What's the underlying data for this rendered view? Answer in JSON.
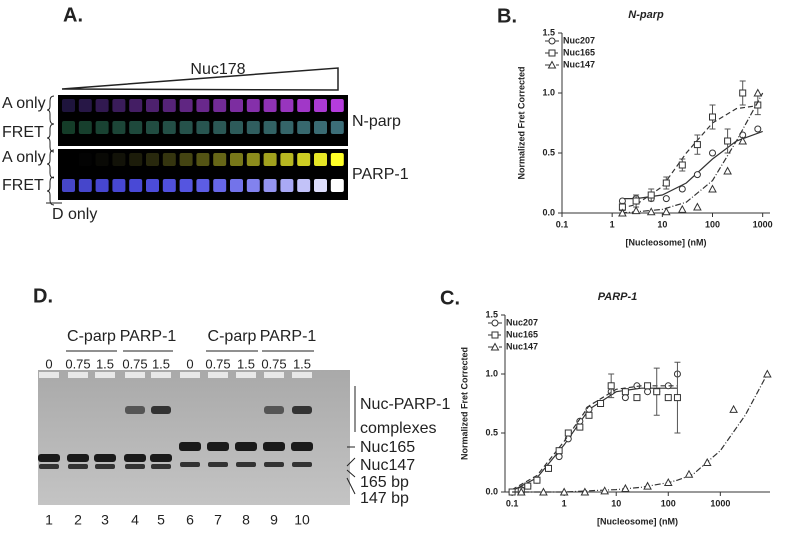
{
  "panel_a": {
    "label": "A.",
    "titrant": "Nuc178",
    "gels": [
      {
        "name": "N-parp",
        "rows": [
          "A only",
          "FRET"
        ]
      },
      {
        "name": "PARP-1",
        "rows": [
          "A only",
          "FRET"
        ]
      }
    ],
    "footnote": "D only"
  },
  "panel_d": {
    "label": "D.",
    "groups": [
      "C-parp",
      "PARP-1",
      "C-parp",
      "PARP-1"
    ],
    "amounts": [
      0,
      0.75,
      1.5,
      0.75,
      1.5,
      0,
      0.75,
      1.5,
      0.75,
      1.5
    ],
    "lanes": [
      1,
      2,
      3,
      4,
      5,
      6,
      7,
      8,
      9,
      10
    ],
    "band_labels": [
      [
        "Nuc-PARP-1",
        "complexes"
      ],
      [
        "Nuc165"
      ],
      [
        "Nuc147"
      ],
      [
        "165 bp"
      ],
      [
        "147 bp"
      ]
    ]
  },
  "chart_data": [
    {
      "type": "scatter",
      "panel_label": "B.",
      "title": "N-parp",
      "xlabel": "[Nucleosome] (nM)",
      "ylabel": "Normalized Fret Corrected",
      "xscale": "log",
      "xlim": [
        0.1,
        1400
      ],
      "xticks": [
        0.1,
        1,
        10,
        100,
        1000
      ],
      "ylim": [
        0,
        1.5
      ],
      "yticks": [
        {
          "value": 0,
          "label": "0.0"
        },
        0.5,
        {
          "value": 1,
          "label": "1.0"
        },
        1.5
      ],
      "legend": "upper left",
      "fit_x": [
        1.5,
        3,
        10,
        30,
        100,
        300,
        1000
      ],
      "series": [
        {
          "name": "Nuc207",
          "marker": "circle",
          "color": "#333333",
          "dash": "solid",
          "x": [
            1.6,
            3,
            6,
            12,
            25,
            50,
            100,
            200,
            400,
            800
          ],
          "values": [
            0.1,
            0.12,
            0.12,
            0.12,
            0.2,
            0.32,
            0.5,
            0.6,
            0.65,
            0.7
          ],
          "fit": [
            0.12,
            0.12,
            0.15,
            0.25,
            0.45,
            0.6,
            0.68
          ]
        },
        {
          "name": "Nuc165",
          "marker": "square",
          "color": "#333333",
          "dash": "dashed",
          "x": [
            1.6,
            3,
            6,
            12,
            25,
            50,
            100,
            200,
            400,
            800
          ],
          "values": [
            0.05,
            0.1,
            0.15,
            0.25,
            0.4,
            0.57,
            0.8,
            0.6,
            1.0,
            0.9
          ],
          "errors": [
            0.03,
            0.05,
            0.05,
            0.05,
            0.05,
            0.08,
            0.1,
            0.1,
            0.1,
            0.08
          ],
          "fit": [
            0.04,
            0.07,
            0.22,
            0.5,
            0.75,
            0.87,
            0.9
          ]
        },
        {
          "name": "Nuc147",
          "marker": "triangle",
          "color": "#333333",
          "dash": "dashdot",
          "x": [
            1.6,
            3,
            6,
            12,
            25,
            50,
            100,
            200,
            400,
            800
          ],
          "values": [
            0,
            0.02,
            0.01,
            0.01,
            0.03,
            0.05,
            0.2,
            0.35,
            0.6,
            1.0
          ],
          "fit": [
            0,
            0.01,
            0.03,
            0.09,
            0.27,
            0.6,
            1.0
          ]
        }
      ]
    },
    {
      "type": "scatter",
      "panel_label": "C.",
      "title": "PARP-1",
      "xlabel": "[Nucleosome] (nM)",
      "ylabel": "Normalized Fret Corrected",
      "xscale": "log",
      "xlim": [
        0.073,
        9000
      ],
      "xticks": [
        0.1,
        1,
        10,
        100,
        1000
      ],
      "ylim": [
        0,
        1.5
      ],
      "yticks": [
        {
          "value": 0,
          "label": "0.0"
        },
        0.5,
        {
          "value": 1,
          "label": "1.0"
        },
        1.5
      ],
      "legend": "upper left",
      "fit_x": [
        0.1,
        0.3,
        1,
        3,
        10,
        30,
        100,
        150,
        300,
        1000,
        3000,
        8000
      ],
      "series": [
        {
          "name": "Nuc207",
          "marker": "circle",
          "color": "#333333",
          "dash": "solid",
          "x": [
            0.1,
            0.15,
            0.2,
            0.3,
            0.5,
            0.8,
            1.2,
            2,
            3,
            5,
            8,
            15,
            25,
            40,
            60,
            100,
            150
          ],
          "values": [
            0,
            0.02,
            0.05,
            0.1,
            0.2,
            0.3,
            0.45,
            0.6,
            0.7,
            0.75,
            0.85,
            0.8,
            0.9,
            0.85,
            0.85,
            0.9,
            1.0
          ],
          "fit": [
            0.01,
            0.12,
            0.4,
            0.7,
            0.85,
            0.88,
            0.88,
            0.88,
            null,
            null,
            null,
            null
          ]
        },
        {
          "name": "Nuc165",
          "marker": "square",
          "color": "#333333",
          "dash": "dashed",
          "x": [
            0.1,
            0.15,
            0.2,
            0.3,
            0.5,
            0.8,
            1.2,
            2,
            3,
            5,
            8,
            15,
            25,
            40,
            60,
            100,
            150
          ],
          "values": [
            0,
            0.01,
            0.05,
            0.1,
            0.2,
            0.35,
            0.5,
            0.55,
            0.65,
            0.75,
            0.9,
            0.85,
            0.8,
            0.9,
            0.85,
            0.8,
            0.8
          ],
          "errors": [
            null,
            null,
            null,
            null,
            null,
            null,
            null,
            null,
            null,
            null,
            0.1,
            null,
            null,
            null,
            0.2,
            null,
            0.3
          ],
          "fit": [
            0.02,
            0.14,
            0.43,
            0.73,
            0.87,
            0.9,
            0.9,
            0.9,
            null,
            null,
            null,
            null
          ]
        },
        {
          "name": "Nuc147",
          "marker": "triangle",
          "color": "#333333",
          "dash": "dashdot",
          "x": [
            0.15,
            0.4,
            1,
            2.5,
            6,
            15,
            40,
            100,
            250,
            560,
            1800,
            8000
          ],
          "values": [
            0,
            0,
            0,
            0,
            0.01,
            0.03,
            0.05,
            0.08,
            0.15,
            0.25,
            0.7,
            1.0
          ],
          "fit": [
            0,
            0,
            0,
            0.01,
            0.02,
            0.04,
            0.08,
            0.1,
            0.15,
            0.35,
            0.65,
            1.0
          ]
        }
      ]
    }
  ]
}
